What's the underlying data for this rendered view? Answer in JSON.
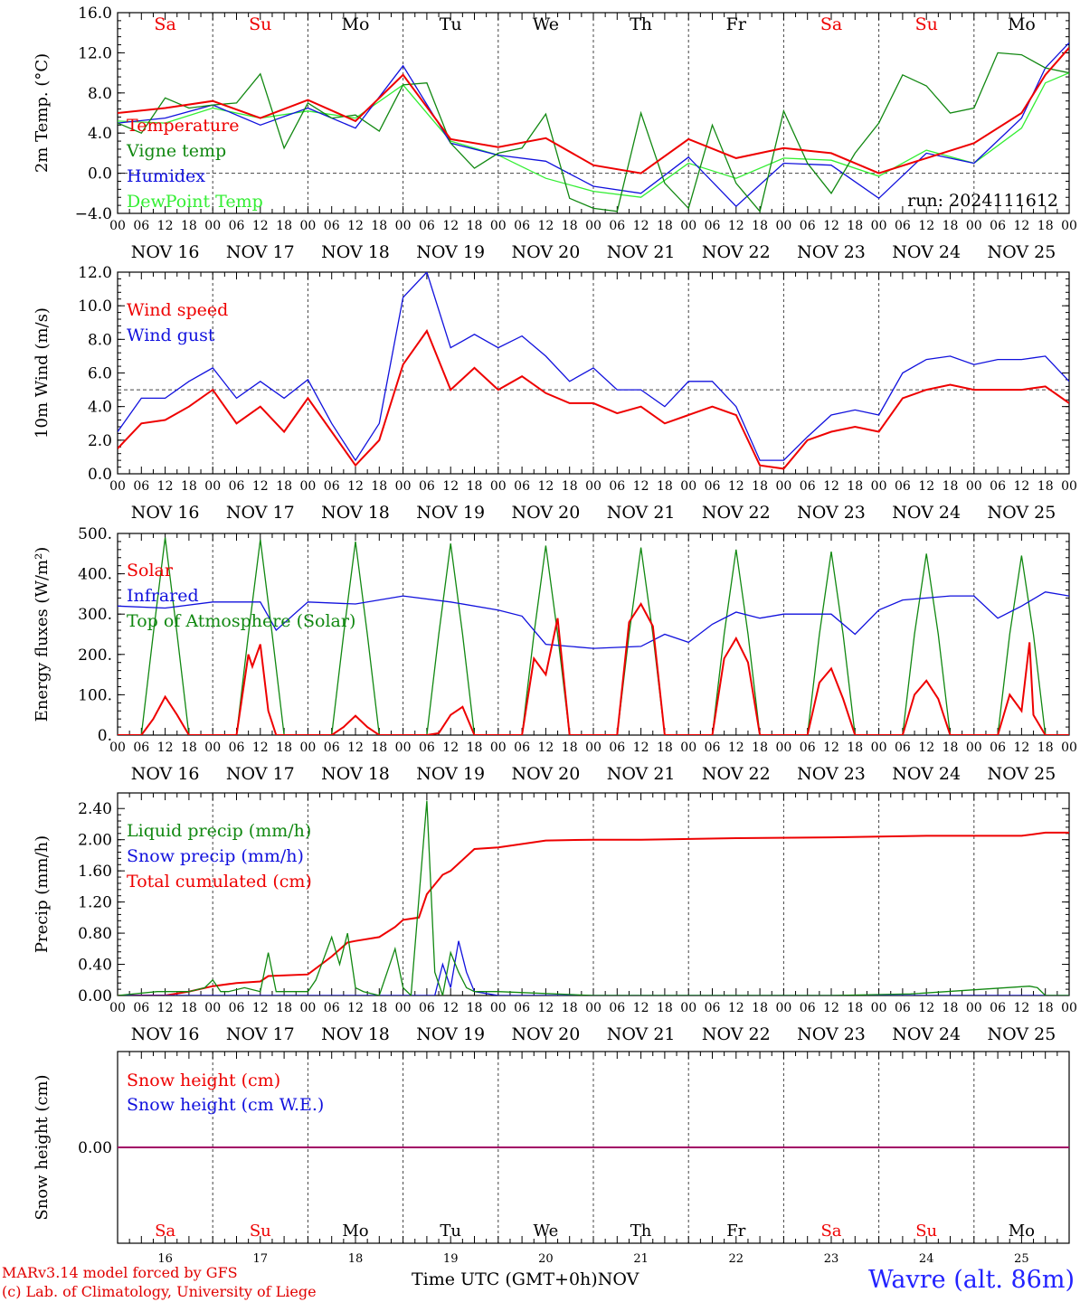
{
  "colors": {
    "red": "#ee0000",
    "green": "#118811",
    "blue": "#1111dd",
    "lightgreen": "#33ee33",
    "purple": "#880088",
    "weekend": "#ee0000",
    "weekday": "#000000",
    "station": "#2222ff"
  },
  "time_axis": {
    "hour_labels": [
      "00",
      "06",
      "12",
      "18"
    ],
    "end_label": "00",
    "date_labels": [
      "NOV 16",
      "NOV 17",
      "NOV 18",
      "NOV 19",
      "NOV 20",
      "NOV 21",
      "NOV 22",
      "NOV 23",
      "NOV 24",
      "NOV 25"
    ],
    "day_labels": [
      "Sa",
      "Su",
      "Mo",
      "Tu",
      "We",
      "Th",
      "Fr",
      "Sa",
      "Su",
      "Mo"
    ],
    "weekend": [
      true,
      true,
      false,
      false,
      false,
      false,
      false,
      true,
      true,
      false
    ],
    "day_numbers": [
      "16",
      "17",
      "18",
      "19",
      "20",
      "21",
      "22",
      "23",
      "24",
      "25"
    ],
    "title": "Time UTC (GMT+0h)",
    "month": "NOV"
  },
  "run_label": "run: 2024111612",
  "footer": {
    "model": "MARv3.14 model forced by GFS",
    "lab": "(c) Lab. of Climatology, University of Liege",
    "station": "Wavre (alt. 86m)"
  },
  "chart_data": [
    {
      "type": "line",
      "ylabel": "2m Temp. (°C)",
      "ylim": [
        -4,
        16
      ],
      "yticks": [
        "−4.0",
        "0.0",
        "4.0",
        "8.0",
        "12.0",
        "16.0"
      ],
      "reference_line": 0,
      "series": [
        {
          "name": "Temperature",
          "color": "red",
          "x": [
            0,
            12,
            24,
            36,
            48,
            60,
            72,
            84,
            96,
            108,
            120,
            132,
            144,
            156,
            168,
            180,
            192,
            204,
            216,
            228,
            234,
            240
          ],
          "y": [
            6.0,
            6.5,
            7.2,
            5.5,
            7.3,
            5.2,
            9.8,
            3.4,
            2.6,
            3.5,
            0.8,
            0.0,
            3.4,
            1.5,
            2.5,
            2.0,
            0.0,
            1.5,
            3.0,
            6.0,
            9.8,
            12.5
          ]
        },
        {
          "name": "Vigne temp",
          "color": "green",
          "x": [
            0,
            6,
            12,
            18,
            24,
            30,
            36,
            42,
            48,
            54,
            60,
            66,
            72,
            78,
            84,
            90,
            96,
            102,
            108,
            114,
            120,
            126,
            132,
            138,
            144,
            150,
            156,
            162,
            168,
            174,
            180,
            186,
            192,
            198,
            204,
            210,
            216,
            222,
            228,
            234,
            240
          ],
          "y": [
            5.0,
            4.0,
            7.5,
            6.5,
            6.8,
            7.0,
            9.9,
            2.5,
            7.0,
            5.5,
            5.8,
            4.2,
            8.8,
            9.0,
            3.0,
            0.5,
            2.0,
            2.5,
            5.9,
            -2.5,
            -3.5,
            -3.8,
            6.0,
            -1.0,
            -3.5,
            4.8,
            -1.0,
            -3.8,
            6.2,
            1.0,
            -2.0,
            2.0,
            5.0,
            9.8,
            8.7,
            6.0,
            6.5,
            12.0,
            11.8,
            10.5,
            10.0
          ]
        },
        {
          "name": "Humidex",
          "color": "blue",
          "x": [
            0,
            12,
            24,
            36,
            48,
            60,
            72,
            84,
            96,
            108,
            120,
            132,
            144,
            156,
            168,
            180,
            192,
            204,
            216,
            228,
            234,
            240
          ],
          "y": [
            5.0,
            5.5,
            6.8,
            4.8,
            6.5,
            4.5,
            10.7,
            3.0,
            1.8,
            1.2,
            -1.3,
            -2.0,
            1.6,
            -3.3,
            1.0,
            0.8,
            -2.5,
            2.0,
            1.0,
            5.5,
            10.5,
            13.0
          ]
        },
        {
          "name": "DewPoint Temp",
          "color": "lightgreen",
          "x": [
            0,
            12,
            24,
            36,
            48,
            60,
            72,
            84,
            96,
            108,
            120,
            132,
            144,
            156,
            168,
            180,
            192,
            204,
            216,
            228,
            234,
            240
          ],
          "y": [
            5.2,
            5.0,
            6.5,
            5.5,
            6.2,
            5.5,
            8.8,
            3.2,
            1.8,
            -0.5,
            -1.8,
            -2.4,
            1.0,
            -0.5,
            1.5,
            1.3,
            -0.3,
            2.3,
            1.0,
            4.5,
            9.0,
            10.0
          ]
        }
      ]
    },
    {
      "type": "line",
      "ylabel": "10m Wind (m/s)",
      "ylim": [
        0,
        12
      ],
      "yticks": [
        "0.0",
        "2.0",
        "4.0",
        "6.0",
        "8.0",
        "10.0",
        "12.0"
      ],
      "reference_line": 5,
      "series": [
        {
          "name": "Wind speed",
          "color": "red",
          "x": [
            0,
            6,
            12,
            18,
            24,
            30,
            36,
            42,
            48,
            54,
            60,
            66,
            72,
            78,
            84,
            90,
            96,
            102,
            108,
            114,
            120,
            126,
            132,
            138,
            144,
            150,
            156,
            162,
            168,
            174,
            180,
            186,
            192,
            198,
            204,
            210,
            216,
            222,
            228,
            234,
            240
          ],
          "y": [
            1.5,
            3.0,
            3.2,
            4.0,
            5.0,
            3.0,
            4.0,
            2.5,
            4.5,
            2.5,
            0.5,
            2.0,
            6.5,
            8.5,
            5.0,
            6.3,
            5.0,
            5.8,
            4.8,
            4.2,
            4.2,
            3.6,
            4.0,
            3.0,
            3.5,
            4.0,
            3.5,
            0.5,
            0.3,
            2.0,
            2.5,
            2.8,
            2.5,
            4.5,
            5.0,
            5.3,
            5.0,
            5.0,
            5.0,
            5.2,
            4.2
          ]
        },
        {
          "name": "Wind gust",
          "color": "blue",
          "x": [
            0,
            6,
            12,
            18,
            24,
            30,
            36,
            42,
            48,
            54,
            60,
            66,
            72,
            78,
            84,
            90,
            96,
            102,
            108,
            114,
            120,
            126,
            132,
            138,
            144,
            150,
            156,
            162,
            168,
            174,
            180,
            186,
            192,
            198,
            204,
            210,
            216,
            222,
            228,
            234,
            240
          ],
          "y": [
            2.5,
            4.5,
            4.5,
            5.5,
            6.3,
            4.5,
            5.5,
            4.5,
            5.6,
            3.0,
            0.8,
            3.0,
            10.5,
            12.0,
            7.5,
            8.3,
            7.5,
            8.2,
            7.0,
            5.5,
            6.3,
            5.0,
            5.0,
            4.0,
            5.5,
            5.5,
            4.0,
            0.8,
            0.8,
            2.2,
            3.5,
            3.8,
            3.5,
            6.0,
            6.8,
            7.0,
            6.5,
            6.8,
            6.8,
            7.0,
            5.5
          ]
        }
      ]
    },
    {
      "type": "line",
      "ylabel": "Energy fluxes (W/m²)",
      "ylim": [
        0,
        500
      ],
      "yticks": [
        "0.",
        "100.",
        "200.",
        "300.",
        "400.",
        "500."
      ],
      "series": [
        {
          "name": "Solar",
          "color": "red",
          "x": [
            0,
            6,
            9,
            12,
            15,
            18,
            24,
            30,
            33,
            34,
            36,
            38,
            40,
            48,
            54,
            57,
            60,
            63,
            66,
            72,
            78,
            81,
            84,
            87,
            90,
            96,
            102,
            105,
            108,
            111,
            114,
            120,
            126,
            129,
            132,
            135,
            138,
            144,
            150,
            153,
            156,
            159,
            162,
            168,
            174,
            177,
            180,
            183,
            186,
            192,
            198,
            201,
            204,
            207,
            210,
            216,
            222,
            225,
            228,
            230,
            231,
            234,
            240
          ],
          "y": [
            0,
            0,
            40,
            95,
            50,
            0,
            0,
            0,
            200,
            170,
            225,
            60,
            0,
            0,
            0,
            20,
            48,
            20,
            0,
            0,
            0,
            5,
            50,
            70,
            0,
            0,
            0,
            190,
            150,
            290,
            0,
            0,
            0,
            280,
            325,
            270,
            0,
            0,
            0,
            190,
            240,
            180,
            0,
            0,
            0,
            130,
            165,
            90,
            0,
            0,
            0,
            100,
            135,
            90,
            0,
            0,
            0,
            100,
            60,
            230,
            50,
            0,
            0
          ]
        },
        {
          "name": "Infrared",
          "color": "blue",
          "x": [
            0,
            12,
            24,
            36,
            40,
            48,
            60,
            72,
            84,
            96,
            102,
            108,
            120,
            132,
            138,
            144,
            150,
            156,
            162,
            168,
            180,
            186,
            192,
            198,
            204,
            210,
            216,
            222,
            228,
            234,
            240
          ],
          "y": [
            320,
            315,
            330,
            330,
            260,
            330,
            325,
            345,
            330,
            310,
            295,
            225,
            215,
            220,
            250,
            230,
            275,
            305,
            290,
            300,
            300,
            250,
            310,
            335,
            340,
            345,
            345,
            290,
            320,
            355,
            345
          ]
        },
        {
          "name": "Top of Atmosphere (Solar)",
          "color": "green",
          "x": [
            0,
            6,
            9,
            12,
            15,
            18,
            24,
            30,
            33,
            36,
            39,
            42,
            48,
            54,
            57,
            60,
            63,
            66,
            72,
            78,
            81,
            84,
            87,
            90,
            96,
            102,
            105,
            108,
            111,
            114,
            120,
            126,
            129,
            132,
            135,
            138,
            144,
            150,
            153,
            156,
            159,
            162,
            168,
            174,
            177,
            180,
            183,
            186,
            192,
            198,
            201,
            204,
            207,
            210,
            216,
            222,
            225,
            228,
            231,
            234,
            240
          ],
          "y": [
            0,
            0,
            250,
            490,
            250,
            0,
            0,
            0,
            250,
            485,
            250,
            0,
            0,
            0,
            250,
            480,
            250,
            0,
            0,
            0,
            250,
            475,
            250,
            0,
            0,
            0,
            250,
            470,
            250,
            0,
            0,
            0,
            250,
            465,
            250,
            0,
            0,
            0,
            250,
            460,
            250,
            0,
            0,
            0,
            250,
            455,
            250,
            0,
            0,
            0,
            250,
            450,
            250,
            0,
            0,
            0,
            250,
            445,
            250,
            0,
            0
          ]
        }
      ]
    },
    {
      "type": "line",
      "ylabel": "Precip (mm/h)",
      "ylim": [
        0,
        2.6
      ],
      "yticks": [
        "0.00",
        "0.40",
        "0.80",
        "1.20",
        "1.60",
        "2.00",
        "2.40"
      ],
      "series": [
        {
          "name": "Liquid precip (mm/h)",
          "color": "green",
          "x": [
            0,
            10,
            18,
            22,
            24,
            26,
            28,
            32,
            36,
            38,
            40,
            48,
            50,
            54,
            56,
            58,
            60,
            62,
            66,
            70,
            72,
            74,
            78,
            80,
            82,
            84,
            86,
            88,
            90,
            96,
            120,
            180,
            200,
            230,
            232,
            234,
            240
          ],
          "y": [
            0,
            0.05,
            0.05,
            0.1,
            0.2,
            0.05,
            0.05,
            0.1,
            0.05,
            0.55,
            0.05,
            0.05,
            0.2,
            0.75,
            0.4,
            0.8,
            0.1,
            0.05,
            0,
            0.6,
            0.1,
            0,
            2.5,
            0.3,
            0,
            0.55,
            0.3,
            0.1,
            0.05,
            0.05,
            0,
            0,
            0.02,
            0.12,
            0.1,
            0,
            0
          ]
        },
        {
          "name": "Snow precip (mm/h)",
          "color": "blue",
          "x": [
            0,
            72,
            80,
            82,
            84,
            86,
            88,
            90,
            96,
            240
          ],
          "y": [
            0,
            0,
            0,
            0.4,
            0.1,
            0.7,
            0.3,
            0.05,
            0,
            0
          ]
        },
        {
          "name": "Total cumulated (cm)",
          "color": "red",
          "x": [
            0,
            12,
            18,
            24,
            30,
            36,
            38,
            48,
            54,
            58,
            60,
            66,
            70,
            72,
            76,
            78,
            82,
            84,
            90,
            96,
            108,
            120,
            132,
            156,
            180,
            204,
            228,
            234,
            240
          ],
          "y": [
            0,
            0,
            0.05,
            0.12,
            0.16,
            0.18,
            0.25,
            0.27,
            0.5,
            0.68,
            0.7,
            0.75,
            0.88,
            0.97,
            1.0,
            1.3,
            1.55,
            1.6,
            1.88,
            1.9,
            1.99,
            2.0,
            2.0,
            2.02,
            2.03,
            2.05,
            2.05,
            2.09,
            2.09
          ]
        }
      ]
    },
    {
      "type": "line",
      "ylabel": "Snow height (cm)",
      "ylim": [
        -1,
        1
      ],
      "yticks": [
        "0.00"
      ],
      "series": [
        {
          "name": "Snow height (cm)",
          "color": "red",
          "x": [
            0,
            240
          ],
          "y": [
            0,
            0
          ]
        },
        {
          "name": "Snow height (cm W.E.)",
          "color": "blue",
          "x": [
            0,
            240
          ],
          "y": [
            0,
            0
          ]
        }
      ]
    }
  ]
}
